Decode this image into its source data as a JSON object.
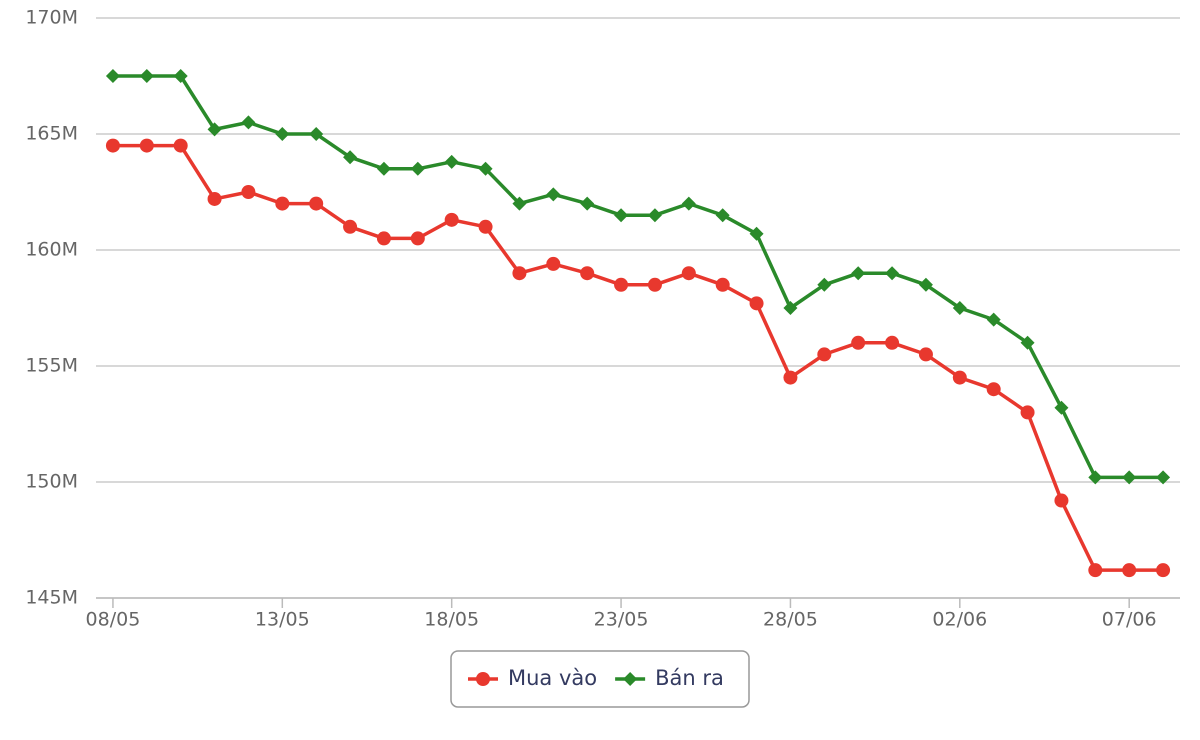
{
  "chart_data": {
    "type": "line",
    "categories": [
      "08/05",
      null,
      null,
      null,
      null,
      "13/05",
      null,
      null,
      null,
      null,
      "18/05",
      null,
      null,
      null,
      null,
      "23/05",
      null,
      null,
      null,
      null,
      "28/05",
      null,
      null,
      null,
      null,
      "02/06",
      null,
      null,
      null,
      null,
      "07/06",
      null
    ],
    "series": [
      {
        "name": "Mua vào",
        "color": "#e8382e",
        "marker": "circle",
        "values": [
          164500000,
          164500000,
          164500000,
          162200000,
          162500000,
          162000000,
          162000000,
          161000000,
          160500000,
          160500000,
          161300000,
          161000000,
          159000000,
          159400000,
          159000000,
          158500000,
          158500000,
          159000000,
          158500000,
          157700000,
          154500000,
          155500000,
          156000000,
          156000000,
          155500000,
          154500000,
          154000000,
          153000000,
          149200000,
          146200000,
          146200000,
          146200000
        ]
      },
      {
        "name": "Bán ra",
        "color": "#2a8a2a",
        "marker": "diamond",
        "values": [
          167500000,
          167500000,
          167500000,
          165200000,
          165500000,
          165000000,
          165000000,
          164000000,
          163500000,
          163500000,
          163800000,
          163500000,
          162000000,
          162400000,
          162000000,
          161500000,
          161500000,
          162000000,
          161500000,
          160700000,
          157500000,
          158500000,
          159000000,
          159000000,
          158500000,
          157500000,
          157000000,
          156000000,
          153200000,
          150200000,
          150200000,
          150200000
        ]
      }
    ],
    "ylim": [
      145000000,
      170000000
    ],
    "yticks": [
      {
        "value": 145000000,
        "label": "145M"
      },
      {
        "value": 150000000,
        "label": "150M"
      },
      {
        "value": 155000000,
        "label": "155M"
      },
      {
        "value": 160000000,
        "label": "160M"
      },
      {
        "value": 165000000,
        "label": "165M"
      },
      {
        "value": 170000000,
        "label": "170M"
      }
    ],
    "grid": true,
    "legend": "bottom"
  }
}
